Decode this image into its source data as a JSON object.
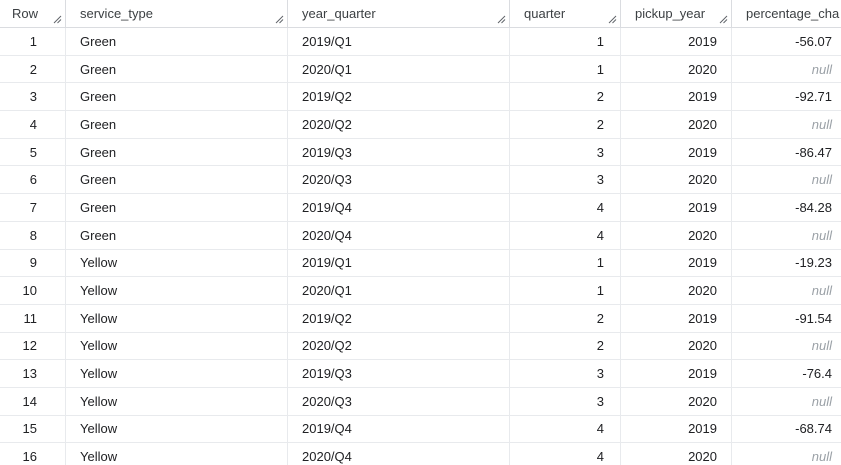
{
  "columns": [
    "Row",
    "service_type",
    "year_quarter",
    "quarter",
    "pickup_year",
    "percentage_cha"
  ],
  "null_label": "null",
  "rows": [
    {
      "row": "1",
      "service_type": "Green",
      "year_quarter": "2019/Q1",
      "quarter": "1",
      "pickup_year": "2019",
      "percentage_change": "-56.07"
    },
    {
      "row": "2",
      "service_type": "Green",
      "year_quarter": "2020/Q1",
      "quarter": "1",
      "pickup_year": "2020",
      "percentage_change": "null"
    },
    {
      "row": "3",
      "service_type": "Green",
      "year_quarter": "2019/Q2",
      "quarter": "2",
      "pickup_year": "2019",
      "percentage_change": "-92.71"
    },
    {
      "row": "4",
      "service_type": "Green",
      "year_quarter": "2020/Q2",
      "quarter": "2",
      "pickup_year": "2020",
      "percentage_change": "null"
    },
    {
      "row": "5",
      "service_type": "Green",
      "year_quarter": "2019/Q3",
      "quarter": "3",
      "pickup_year": "2019",
      "percentage_change": "-86.47"
    },
    {
      "row": "6",
      "service_type": "Green",
      "year_quarter": "2020/Q3",
      "quarter": "3",
      "pickup_year": "2020",
      "percentage_change": "null"
    },
    {
      "row": "7",
      "service_type": "Green",
      "year_quarter": "2019/Q4",
      "quarter": "4",
      "pickup_year": "2019",
      "percentage_change": "-84.28"
    },
    {
      "row": "8",
      "service_type": "Green",
      "year_quarter": "2020/Q4",
      "quarter": "4",
      "pickup_year": "2020",
      "percentage_change": "null"
    },
    {
      "row": "9",
      "service_type": "Yellow",
      "year_quarter": "2019/Q1",
      "quarter": "1",
      "pickup_year": "2019",
      "percentage_change": "-19.23"
    },
    {
      "row": "10",
      "service_type": "Yellow",
      "year_quarter": "2020/Q1",
      "quarter": "1",
      "pickup_year": "2020",
      "percentage_change": "null"
    },
    {
      "row": "11",
      "service_type": "Yellow",
      "year_quarter": "2019/Q2",
      "quarter": "2",
      "pickup_year": "2019",
      "percentage_change": "-91.54"
    },
    {
      "row": "12",
      "service_type": "Yellow",
      "year_quarter": "2020/Q2",
      "quarter": "2",
      "pickup_year": "2020",
      "percentage_change": "null"
    },
    {
      "row": "13",
      "service_type": "Yellow",
      "year_quarter": "2019/Q3",
      "quarter": "3",
      "pickup_year": "2019",
      "percentage_change": "-76.4"
    },
    {
      "row": "14",
      "service_type": "Yellow",
      "year_quarter": "2020/Q3",
      "quarter": "3",
      "pickup_year": "2020",
      "percentage_change": "null"
    },
    {
      "row": "15",
      "service_type": "Yellow",
      "year_quarter": "2019/Q4",
      "quarter": "4",
      "pickup_year": "2019",
      "percentage_change": "-68.74"
    },
    {
      "row": "16",
      "service_type": "Yellow",
      "year_quarter": "2020/Q4",
      "quarter": "4",
      "pickup_year": "2020",
      "percentage_change": "null"
    }
  ],
  "colors": {
    "grid_line": "#e8eaed",
    "header_text": "#3c4043",
    "null_text": "#9aa0a6",
    "cell_text": "#202124"
  },
  "icons": {
    "column_resize": "column-resize-handle-icon"
  }
}
